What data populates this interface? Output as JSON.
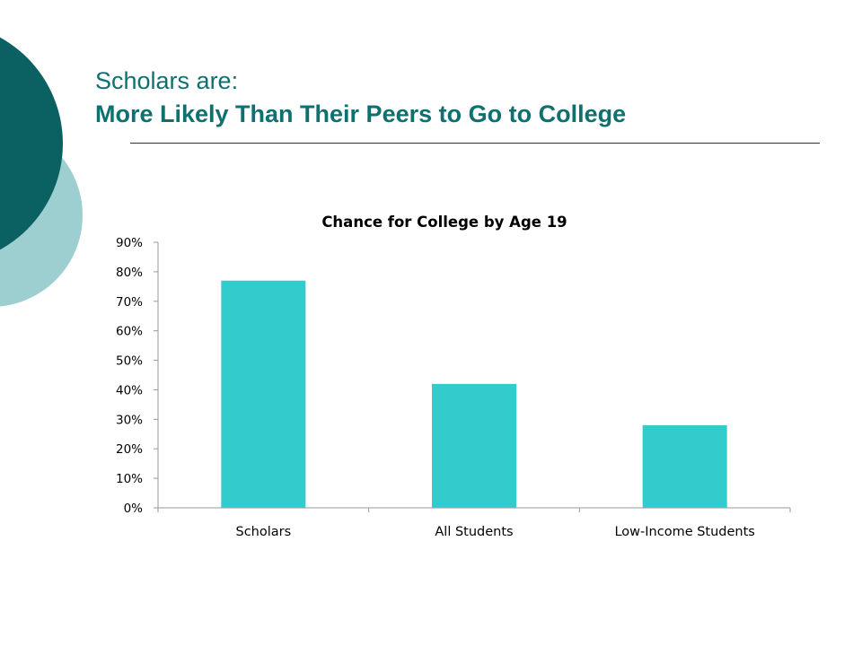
{
  "slide": {
    "title_line1": "Scholars are:",
    "title_line2": "More Likely Than Their Peers to Go to College"
  },
  "colors": {
    "title": "#0f7070",
    "bar": "#33cccc",
    "deco_dark": "#0b6161",
    "deco_light": "#9ecfd0"
  },
  "chart_data": {
    "type": "bar",
    "title": "Chance for College by Age 19",
    "categories": [
      "Scholars",
      "All Students",
      "Low-Income Students"
    ],
    "values": [
      77,
      42,
      28
    ],
    "ylim": [
      0,
      90
    ],
    "yticks": [
      0,
      10,
      20,
      30,
      40,
      50,
      60,
      70,
      80,
      90
    ],
    "ytick_labels": [
      "0%",
      "10%",
      "20%",
      "30%",
      "40%",
      "50%",
      "60%",
      "70%",
      "80%",
      "90%"
    ],
    "y_unit": "percent",
    "grid": false,
    "legend": "none"
  }
}
